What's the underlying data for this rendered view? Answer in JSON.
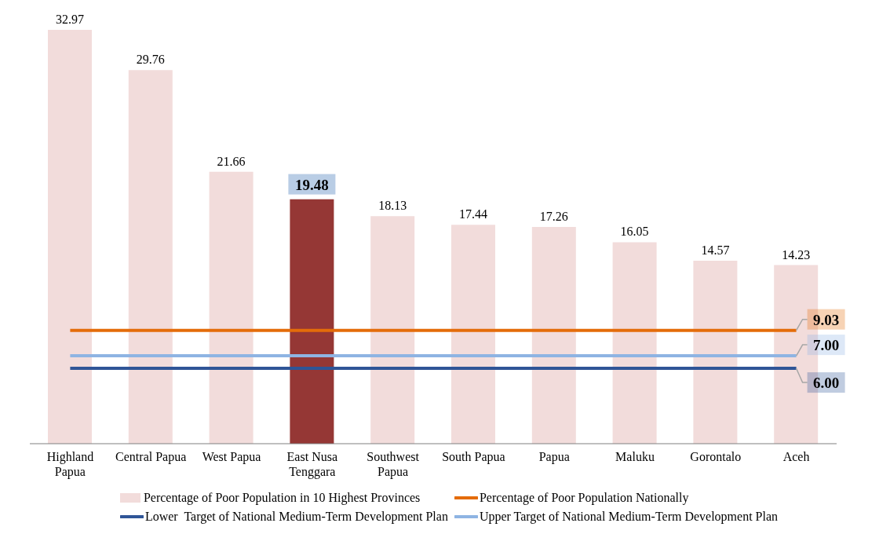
{
  "chart_data": {
    "type": "bar",
    "categories": [
      "Highland Papua",
      "Central Papua",
      "West Papua",
      "East Nusa Tenggara",
      "Southwest Papua",
      "South Papua",
      "Papua",
      "Maluku",
      "Gorontalo",
      "Aceh"
    ],
    "series": [
      {
        "name": "Percentage of Poor Population in 10 Highest Provinces",
        "color": "#f2dcdb",
        "colors": [
          "#f2dcdb",
          "#f2dcdb",
          "#f2dcdb",
          "#953735",
          "#f2dcdb",
          "#f2dcdb",
          "#f2dcdb",
          "#f2dcdb",
          "#f2dcdb",
          "#f2dcdb"
        ],
        "values": [
          32.97,
          29.76,
          21.66,
          19.48,
          18.13,
          17.44,
          17.26,
          16.05,
          14.57,
          14.23
        ],
        "value_labels": [
          "32.97",
          "29.76",
          "21.66",
          "19.48",
          "18.13",
          "17.44",
          "17.26",
          "16.05",
          "14.57",
          "14.23"
        ]
      },
      {
        "name": "Percentage of Poor Population Nationally",
        "type": "line",
        "color": "#e46c0a",
        "values": [
          9.03,
          9.03,
          9.03,
          9.03,
          9.03,
          9.03,
          9.03,
          9.03,
          9.03,
          9.03
        ],
        "value_labels": [
          null,
          null,
          null,
          null,
          null,
          null,
          null,
          null,
          null,
          "9.03"
        ]
      },
      {
        "name": "Lower  Target of National Medium-Term Development Plan",
        "type": "line",
        "color": "#2f5597",
        "values": [
          6.0,
          6.0,
          6.0,
          6.0,
          6.0,
          6.0,
          6.0,
          6.0,
          6.0,
          6.0
        ],
        "value_labels": [
          null,
          null,
          null,
          null,
          null,
          null,
          null,
          null,
          null,
          "6.00"
        ]
      },
      {
        "name": "Upper Target of National Medium-Term Development Plan",
        "type": "line",
        "color": "#8eb4e3",
        "values": [
          7.0,
          7.0,
          7.0,
          7.0,
          7.0,
          7.0,
          7.0,
          7.0,
          7.0,
          7.0
        ],
        "value_labels": [
          null,
          null,
          null,
          null,
          null,
          null,
          null,
          null,
          null,
          "7.00"
        ]
      }
    ],
    "legend": "bottom"
  }
}
